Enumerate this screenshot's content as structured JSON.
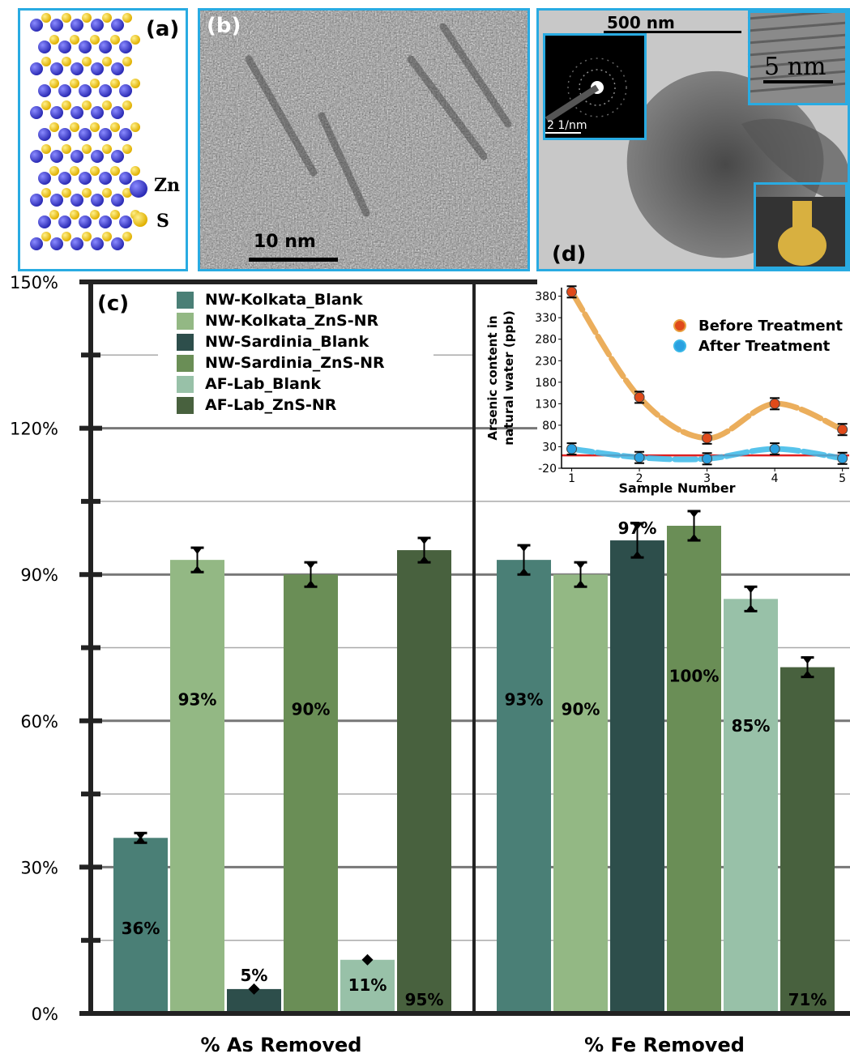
{
  "panels": {
    "a": {
      "label": "(a)",
      "zn": "Zn",
      "s": "S"
    },
    "b": {
      "label": "(b)",
      "scale": "10 nm"
    },
    "d": {
      "label": "(d)",
      "scale": "500 nm",
      "saed_scale": "2 1/nm",
      "hr_scale": "5 nm"
    },
    "c": {
      "label": "(c)"
    }
  },
  "colors": {
    "panel_border": "#29abe2",
    "zn_atom": "#2b2bb5",
    "s_atom": "#e0b000",
    "kolkata_blank": "#4a7f76",
    "kolkata_zns": "#93b884",
    "sardinia_blank": "#2d4e4b",
    "sardinia_zns": "#6a8e56",
    "lab_blank": "#98c1a8",
    "lab_zns": "#48613e"
  },
  "chart_data": [
    {
      "type": "bar",
      "categories": [
        "% As Removed",
        "% Fe Removed"
      ],
      "ylim": [
        0,
        150
      ],
      "yticks": [
        "0%",
        "30%",
        "60%",
        "90%",
        "120%",
        "150%"
      ],
      "series": [
        {
          "name": "NW-Kolkata_Blank",
          "values": [
            36,
            93
          ],
          "errors": [
            1,
            3
          ],
          "labels": [
            "36%",
            "93%"
          ]
        },
        {
          "name": "NW-Kolkata_ZnS-NR",
          "values": [
            93,
            90
          ],
          "errors": [
            2.5,
            2.5
          ],
          "labels": [
            "93%",
            "90%"
          ]
        },
        {
          "name": "NW-Sardinia_Blank",
          "values": [
            5,
            97
          ],
          "errors": [
            0.5,
            3.5
          ],
          "labels": [
            "5%",
            "97%"
          ]
        },
        {
          "name": "NW-Sardinia_ZnS-NR",
          "values": [
            90,
            100
          ],
          "errors": [
            2.5,
            3
          ],
          "labels": [
            "90%",
            "100%"
          ]
        },
        {
          "name": "AF-Lab_Blank",
          "values": [
            11,
            85
          ],
          "errors": [
            0.5,
            2.5
          ],
          "labels": [
            "11%",
            "85%"
          ]
        },
        {
          "name": "AF-Lab_ZnS-NR",
          "values": [
            95,
            71
          ],
          "errors": [
            2.5,
            2
          ],
          "labels": [
            "95%",
            "71%"
          ]
        }
      ],
      "legend_position": "top-left"
    },
    {
      "type": "scatter",
      "xlabel": "Sample Number",
      "ylabel_lines": [
        "Arsenic content in",
        "natural water (ppb)"
      ],
      "xlim": [
        0.85,
        5.1
      ],
      "ylim": [
        -20,
        400
      ],
      "xticks": [
        1,
        2,
        3,
        4,
        5
      ],
      "yticks": [
        -20,
        30,
        80,
        130,
        180,
        230,
        280,
        330,
        380
      ],
      "threshold": 10,
      "series": [
        {
          "name": "Before Treatment",
          "x": [
            1,
            2,
            3,
            4,
            5
          ],
          "y": [
            390,
            145,
            50,
            130,
            70
          ],
          "color": "#e8a040",
          "marker": "#e04a1a"
        },
        {
          "name": "After Treatment",
          "x": [
            1,
            2,
            3,
            4,
            5
          ],
          "y": [
            25,
            5,
            2,
            25,
            3
          ],
          "color": "#3ab8e8",
          "marker": "#2aa0e0"
        }
      ],
      "threshold_color": "#e02020"
    }
  ]
}
